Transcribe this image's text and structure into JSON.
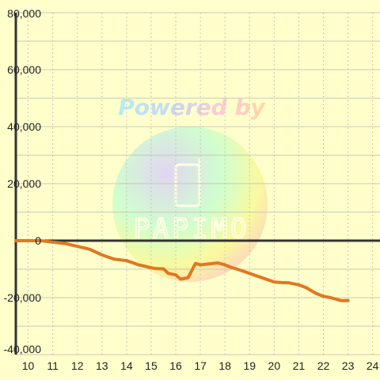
{
  "chart_data": {
    "type": "line",
    "title": "",
    "xlabel": "",
    "ylabel": "",
    "xlim": [
      9.5,
      24.3
    ],
    "ylim": [
      -40000,
      80000
    ],
    "x_ticks": [
      10,
      11,
      12,
      13,
      14,
      15,
      16,
      17,
      18,
      19,
      20,
      21,
      22,
      23,
      24
    ],
    "x_tick_labels": [
      "10",
      "11",
      "12",
      "13",
      "14",
      "15",
      "16",
      "17",
      "18",
      "19",
      "20",
      "21",
      "22",
      "23",
      "24"
    ],
    "y_ticks": [
      -40000,
      -20000,
      0,
      20000,
      40000,
      60000,
      80000
    ],
    "y_tick_labels": [
      "-40,000",
      "-20,000",
      "0",
      "20,000",
      "40,000",
      "60,000",
      "80,000"
    ],
    "grid": true,
    "legend": "none",
    "series": [
      {
        "color": "#e07820",
        "x": [
          9.5,
          10.0,
          10.5,
          11.0,
          11.5,
          12.0,
          12.5,
          13.0,
          13.5,
          14.0,
          14.5,
          15.0,
          15.2,
          15.5,
          15.7,
          16.0,
          16.2,
          16.5,
          16.8,
          17.0,
          17.3,
          17.7,
          18.0,
          18.3,
          18.5,
          19.0,
          19.5,
          20.0,
          20.3,
          20.6,
          21.0,
          21.3,
          21.7,
          22.0,
          22.3,
          22.7,
          23.0
        ],
        "y": [
          0,
          0,
          0,
          -500,
          -1000,
          -2000,
          -3000,
          -5000,
          -6500,
          -7000,
          -8500,
          -9500,
          -9800,
          -9900,
          -11500,
          -12000,
          -13500,
          -13000,
          -8000,
          -8500,
          -8200,
          -7800,
          -8500,
          -9500,
          -10000,
          -11500,
          -13000,
          -14500,
          -14700,
          -14800,
          -15500,
          -16500,
          -18500,
          -19500,
          -20000,
          -21000,
          -21000
        ]
      }
    ]
  },
  "watermark": {
    "headline": "Powered by",
    "brand": "PAPIMO"
  },
  "colors": {
    "background": "#ffffcc",
    "grid": "#c8c8b4",
    "zero_line": "#333333",
    "left_axis": "#333333",
    "line": "#e07820"
  }
}
